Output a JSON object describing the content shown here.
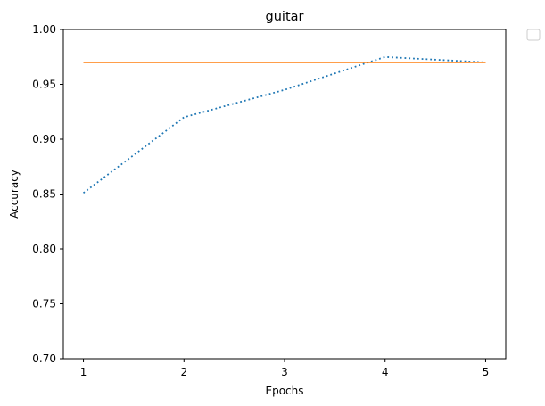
{
  "chart_data": {
    "type": "line",
    "title": "guitar",
    "xlabel": "Epochs",
    "ylabel": "Accuracy",
    "x": [
      1,
      2,
      3,
      4,
      5
    ],
    "xticks": [
      "1",
      "2",
      "3",
      "4",
      "5"
    ],
    "ylim": [
      0.7,
      1.0
    ],
    "yticks": [
      "0.70",
      "0.75",
      "0.80",
      "0.85",
      "0.90",
      "0.95",
      "1.00"
    ],
    "grid": false,
    "legend": "outside-top-right, empty",
    "series": [
      {
        "values": [
          0.851,
          0.92,
          0.945,
          0.975,
          0.97
        ],
        "color": "#1f77b4",
        "style": "dotted"
      },
      {
        "values": [
          0.97,
          0.97,
          0.97,
          0.97,
          0.97
        ],
        "color": "#ff7f0e",
        "style": "solid"
      }
    ]
  }
}
